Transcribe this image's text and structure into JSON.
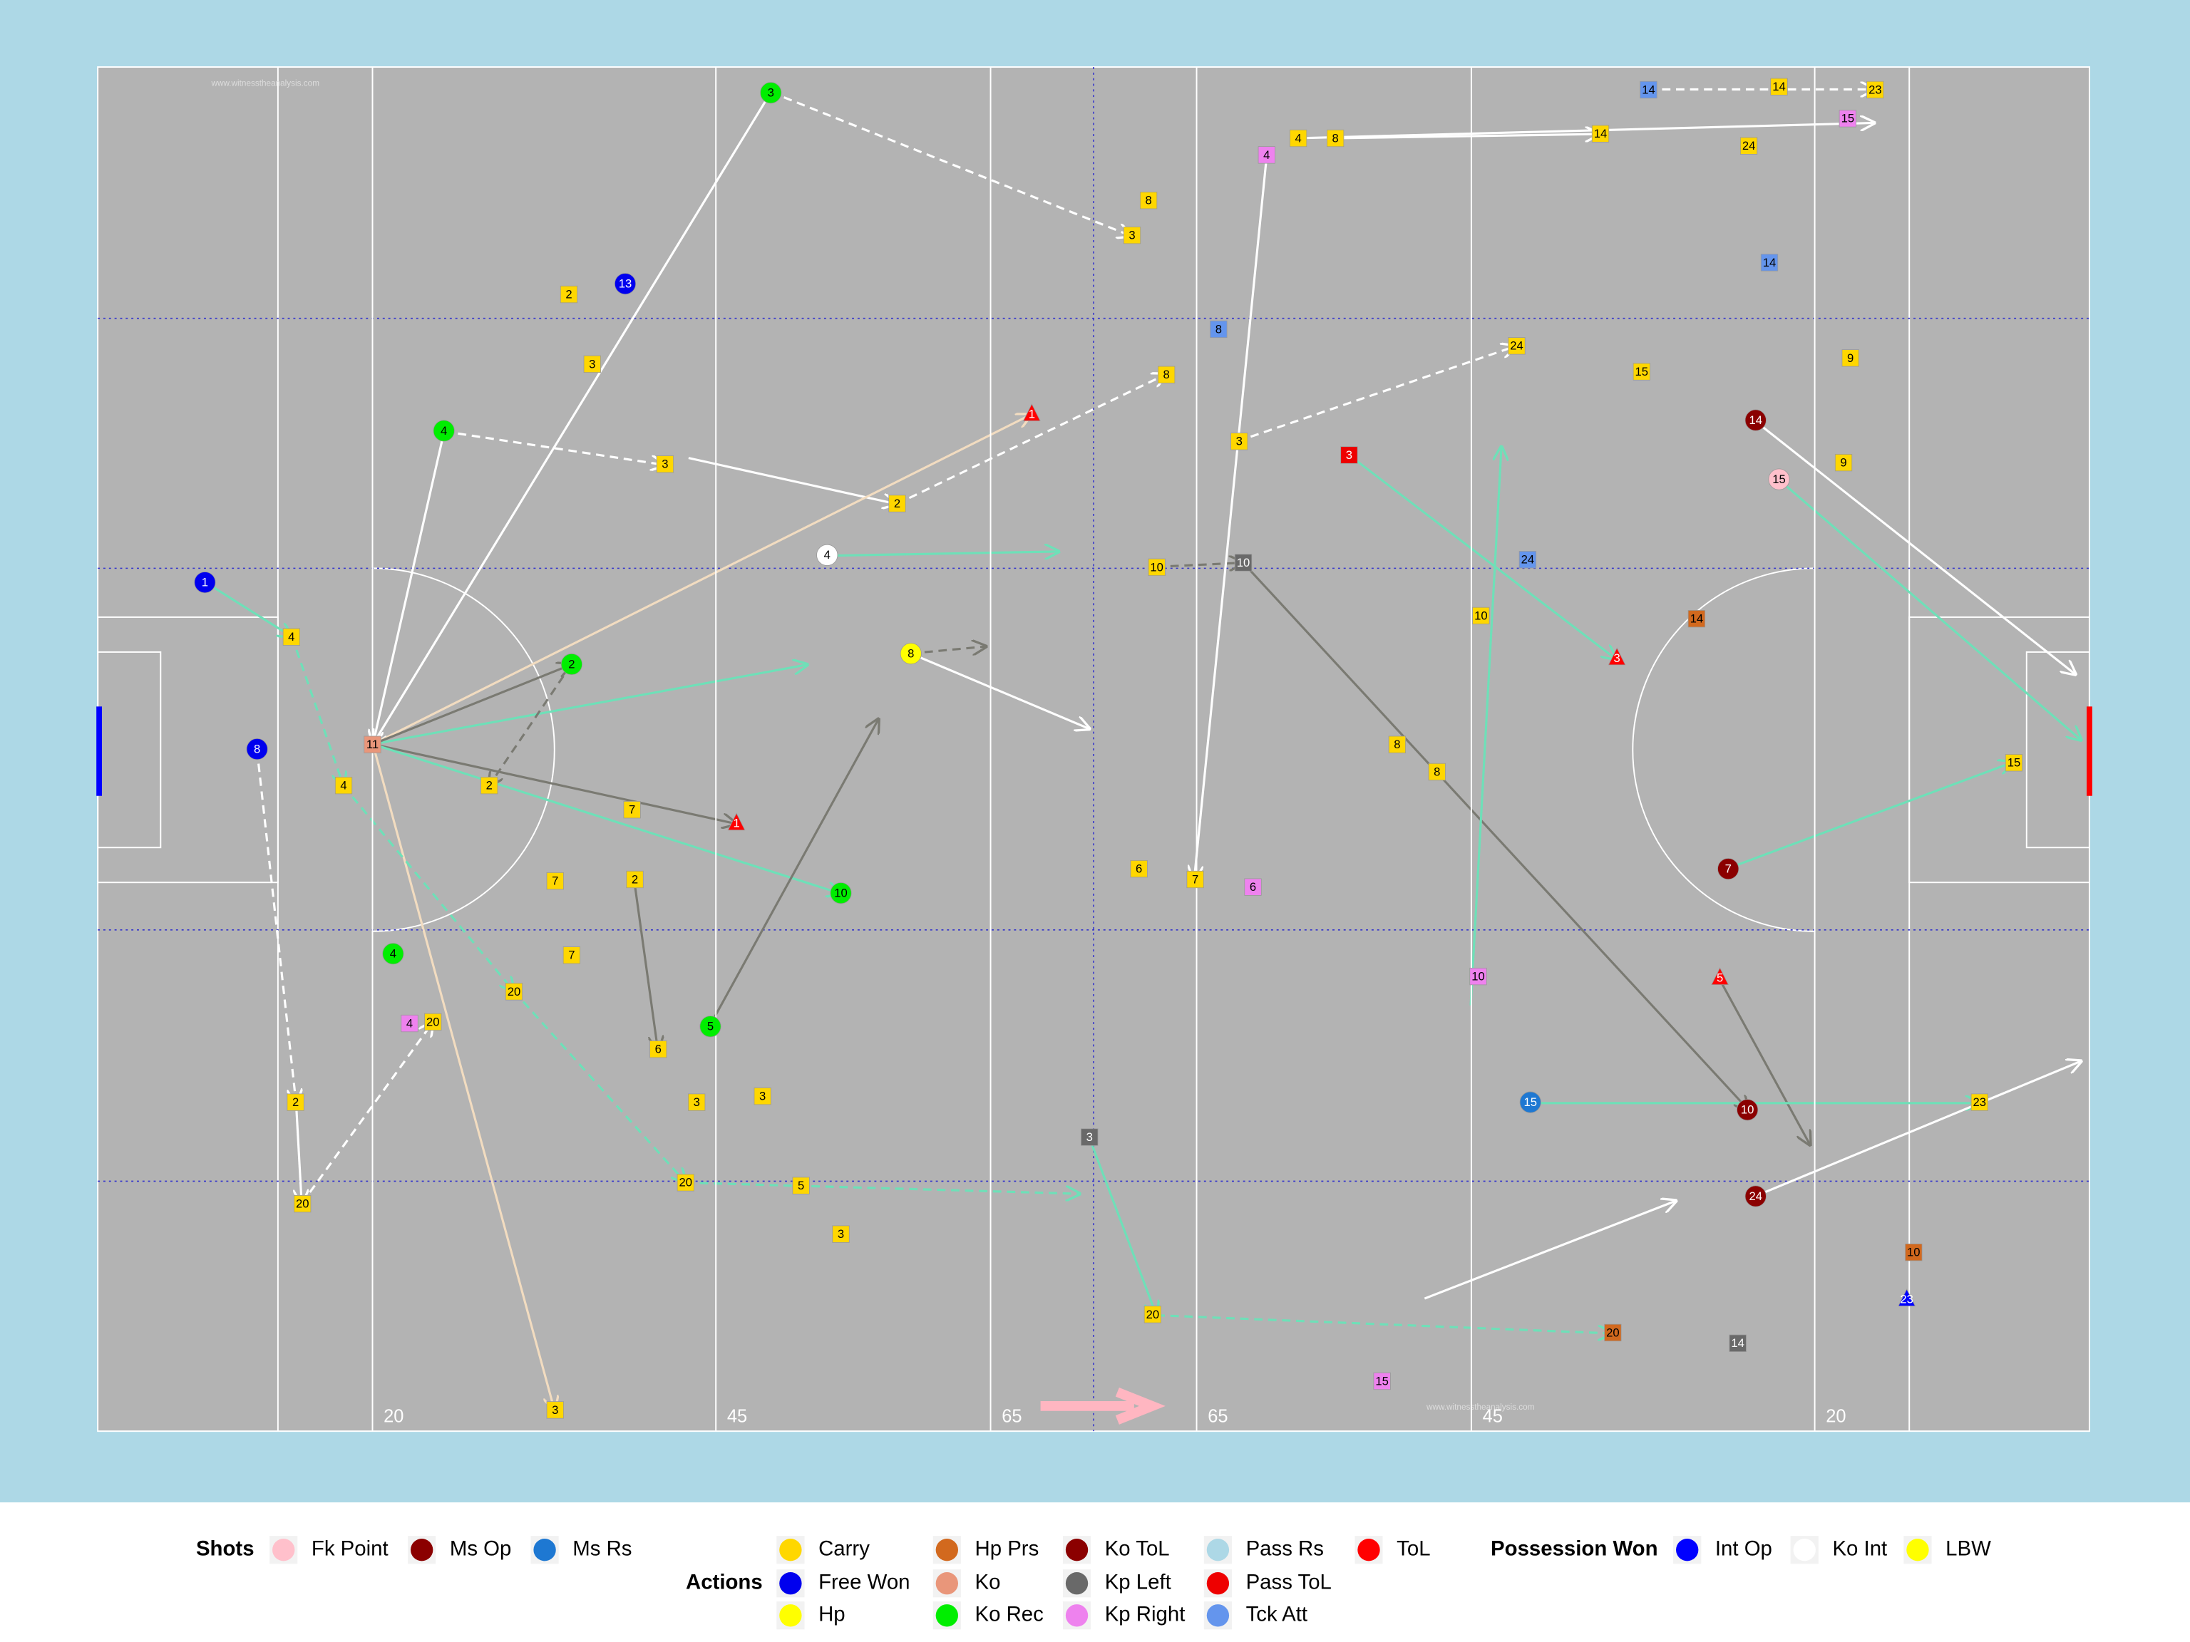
{
  "watermark": "www.witnesstheanalysis.com",
  "chart_data": {
    "type": "pitch",
    "xlim": [
      0,
      145
    ],
    "ylim": [
      0,
      90
    ],
    "xticks": [
      20,
      45,
      65,
      {
        "value": 80,
        "label": "65"
      },
      {
        "value": 100,
        "label": "45"
      },
      {
        "value": 125,
        "label": "20"
      }
    ],
    "legend": [
      {
        "title": "Shots",
        "items": [
          {
            "name": "Fk Point",
            "color": "#ffc0cb",
            "shape": "circle"
          },
          {
            "name": "Ms Op",
            "color": "#8b0000",
            "shape": "circle"
          },
          {
            "name": "Ms Rs",
            "color": "#1e78d2",
            "shape": "circle"
          }
        ]
      },
      {
        "title": "Actions",
        "items": [
          {
            "name": "Carry",
            "color": "#ffd700",
            "shape": "square"
          },
          {
            "name": "Free Won",
            "color": "#0000ee",
            "shape": "circle"
          },
          {
            "name": "Hp",
            "color": "#ffff00",
            "shape": "circle"
          },
          {
            "name": "Hp Prs",
            "color": "#d2691e",
            "shape": "square"
          },
          {
            "name": "Ko",
            "color": "#e9967a",
            "shape": "square"
          },
          {
            "name": "Ko Rec",
            "color": "#00ee00",
            "shape": "circle"
          },
          {
            "name": "Ko ToL",
            "color": "#8b0000",
            "shape": "circle"
          },
          {
            "name": "Kp Left",
            "color": "#696969",
            "shape": "square"
          },
          {
            "name": "Kp Right",
            "color": "#ee82ee",
            "shape": "square"
          },
          {
            "name": "Pass Rs",
            "color": "#add8e6",
            "shape": "square"
          },
          {
            "name": "Pass ToL",
            "color": "#ee0000",
            "shape": "square"
          },
          {
            "name": "Tck Att",
            "color": "#6495ed",
            "shape": "square"
          },
          {
            "name": "ToL",
            "color": "#ff0000",
            "shape": "triangle"
          }
        ]
      },
      {
        "title": "Possession Won",
        "items": [
          {
            "name": "Int Op",
            "color": "#0000ff",
            "shape": "triangle"
          },
          {
            "name": "Ko Int",
            "color": "#ffffff",
            "shape": "circle"
          },
          {
            "name": "LBW",
            "color": "#ffff00",
            "shape": "circle"
          }
        ]
      }
    ],
    "events": [
      {
        "x": 49.0,
        "y": 1.7,
        "label": "3",
        "kind": "Ko Rec"
      },
      {
        "x": 38.4,
        "y": 14.3,
        "label": "13",
        "kind": "Free Won"
      },
      {
        "x": 25.2,
        "y": 24.0,
        "label": "4",
        "kind": "Ko Rec"
      },
      {
        "x": 34.5,
        "y": 39.4,
        "label": "2",
        "kind": "Ko Rec"
      },
      {
        "x": 21.5,
        "y": 58.5,
        "label": "4",
        "kind": "Ko Rec"
      },
      {
        "x": 54.1,
        "y": 54.5,
        "label": "10",
        "kind": "Ko Rec"
      },
      {
        "x": 44.6,
        "y": 63.3,
        "label": "5",
        "kind": "Ko Rec"
      },
      {
        "x": 7.8,
        "y": 34.0,
        "label": "1",
        "kind": "Free Won"
      },
      {
        "x": 11.6,
        "y": 45.0,
        "label": "8",
        "kind": "Free Won"
      },
      {
        "x": 20.0,
        "y": 44.7,
        "label": "11",
        "kind": "Ko"
      },
      {
        "x": 53.1,
        "y": 32.2,
        "label": "4",
        "kind": "Ko Int"
      },
      {
        "x": 59.2,
        "y": 38.7,
        "label": "8",
        "kind": "Hp"
      },
      {
        "x": 34.3,
        "y": 15.0,
        "label": "2",
        "kind": "Carry"
      },
      {
        "x": 36.0,
        "y": 19.6,
        "label": "3",
        "kind": "Carry"
      },
      {
        "x": 41.3,
        "y": 26.2,
        "label": "3",
        "kind": "Carry"
      },
      {
        "x": 58.2,
        "y": 28.8,
        "label": "2",
        "kind": "Carry"
      },
      {
        "x": 14.1,
        "y": 37.6,
        "label": "4",
        "kind": "Carry"
      },
      {
        "x": 17.9,
        "y": 47.4,
        "label": "4",
        "kind": "Carry"
      },
      {
        "x": 28.5,
        "y": 47.4,
        "label": "2",
        "kind": "Carry"
      },
      {
        "x": 38.9,
        "y": 49.0,
        "label": "7",
        "kind": "Carry"
      },
      {
        "x": 39.1,
        "y": 53.6,
        "label": "2",
        "kind": "Carry"
      },
      {
        "x": 33.3,
        "y": 53.7,
        "label": "7",
        "kind": "Carry"
      },
      {
        "x": 34.5,
        "y": 58.6,
        "label": "7",
        "kind": "Carry"
      },
      {
        "x": 30.3,
        "y": 61.0,
        "label": "20",
        "kind": "Carry"
      },
      {
        "x": 24.4,
        "y": 63.0,
        "label": "20",
        "kind": "Carry"
      },
      {
        "x": 22.7,
        "y": 63.1,
        "label": "4",
        "kind": "Kp Right"
      },
      {
        "x": 40.8,
        "y": 64.8,
        "label": "6",
        "kind": "Carry"
      },
      {
        "x": 43.6,
        "y": 68.3,
        "label": "3",
        "kind": "Carry"
      },
      {
        "x": 48.4,
        "y": 67.9,
        "label": "3",
        "kind": "Carry"
      },
      {
        "x": 14.4,
        "y": 68.3,
        "label": "2",
        "kind": "Carry"
      },
      {
        "x": 14.9,
        "y": 75.0,
        "label": "20",
        "kind": "Carry"
      },
      {
        "x": 42.8,
        "y": 73.6,
        "label": "20",
        "kind": "Carry"
      },
      {
        "x": 51.2,
        "y": 73.8,
        "label": "5",
        "kind": "Carry"
      },
      {
        "x": 54.1,
        "y": 77.0,
        "label": "3",
        "kind": "Carry"
      },
      {
        "x": 33.3,
        "y": 88.6,
        "label": "3",
        "kind": "Carry"
      },
      {
        "x": 46.5,
        "y": 49.9,
        "label": "1",
        "kind": "ToL"
      },
      {
        "x": 68.0,
        "y": 22.9,
        "label": "1",
        "kind": "ToL"
      },
      {
        "x": 76.5,
        "y": 8.8,
        "label": "8",
        "kind": "Carry"
      },
      {
        "x": 75.3,
        "y": 11.1,
        "label": "3",
        "kind": "Carry"
      },
      {
        "x": 81.6,
        "y": 17.3,
        "label": "8",
        "kind": "Tck Att"
      },
      {
        "x": 77.8,
        "y": 20.3,
        "label": "8",
        "kind": "Carry"
      },
      {
        "x": 83.1,
        "y": 24.7,
        "label": "3",
        "kind": "Carry"
      },
      {
        "x": 77.1,
        "y": 33.0,
        "label": "10",
        "kind": "Carry"
      },
      {
        "x": 83.4,
        "y": 32.7,
        "label": "10",
        "kind": "Kp Left"
      },
      {
        "x": 85.1,
        "y": 5.8,
        "label": "4",
        "kind": "Kp Right"
      },
      {
        "x": 87.4,
        "y": 4.7,
        "label": "4",
        "kind": "Carry"
      },
      {
        "x": 90.1,
        "y": 4.7,
        "label": "8",
        "kind": "Carry"
      },
      {
        "x": 109.4,
        "y": 4.4,
        "label": "14",
        "kind": "Carry"
      },
      {
        "x": 112.9,
        "y": 1.5,
        "label": "14",
        "kind": "Tck Att"
      },
      {
        "x": 122.4,
        "y": 1.3,
        "label": "14",
        "kind": "Carry"
      },
      {
        "x": 129.4,
        "y": 1.5,
        "label": "23",
        "kind": "Carry"
      },
      {
        "x": 127.4,
        "y": 3.4,
        "label": "15",
        "kind": "Kp Right"
      },
      {
        "x": 120.7,
        "y": 23.3,
        "label": "14",
        "kind": "Ms Op"
      },
      {
        "x": 122.4,
        "y": 27.2,
        "label": "15",
        "kind": "Fk Point"
      },
      {
        "x": 118.7,
        "y": 52.9,
        "label": "7",
        "kind": "Ms Op"
      },
      {
        "x": 120.1,
        "y": 68.8,
        "label": "10",
        "kind": "Ms Op"
      },
      {
        "x": 120.7,
        "y": 74.5,
        "label": "24",
        "kind": "Ms Op"
      },
      {
        "x": 104.3,
        "y": 68.3,
        "label": "15",
        "kind": "Ms Rs"
      },
      {
        "x": 112.4,
        "y": 20.1,
        "label": "15",
        "kind": "Carry"
      },
      {
        "x": 116.4,
        "y": 36.4,
        "label": "14",
        "kind": "Hp Prs"
      },
      {
        "x": 91.1,
        "y": 25.6,
        "label": "3",
        "kind": "Pass ToL"
      },
      {
        "x": 110.6,
        "y": 39.0,
        "label": "3",
        "kind": "ToL"
      },
      {
        "x": 118.1,
        "y": 60.1,
        "label": "5",
        "kind": "ToL"
      },
      {
        "x": 137.0,
        "y": 68.3,
        "label": "23",
        "kind": "Carry"
      },
      {
        "x": 139.5,
        "y": 45.9,
        "label": "15",
        "kind": "Carry"
      },
      {
        "x": 119.4,
        "y": 84.2,
        "label": "14",
        "kind": "Kp Left"
      },
      {
        "x": 110.3,
        "y": 83.5,
        "label": "20",
        "kind": "Hp Prs"
      },
      {
        "x": 93.5,
        "y": 86.7,
        "label": "15",
        "kind": "Kp Right"
      },
      {
        "x": 76.8,
        "y": 82.3,
        "label": "20",
        "kind": "Carry"
      },
      {
        "x": 72.2,
        "y": 70.6,
        "label": "3",
        "kind": "Kp Left"
      },
      {
        "x": 131.7,
        "y": 81.3,
        "label": "23",
        "kind": "Int Op"
      },
      {
        "x": 132.2,
        "y": 78.2,
        "label": "10",
        "kind": "Hp Prs"
      },
      {
        "x": 100.5,
        "y": 60.0,
        "label": "10",
        "kind": "Kp Right"
      },
      {
        "x": 84.1,
        "y": 54.1,
        "label": "6",
        "kind": "Kp Right"
      },
      {
        "x": 79.9,
        "y": 53.6,
        "label": "7",
        "kind": "Carry"
      },
      {
        "x": 75.8,
        "y": 52.9,
        "label": "6",
        "kind": "Carry"
      },
      {
        "x": 100.7,
        "y": 36.2,
        "label": "10",
        "kind": "Carry"
      },
      {
        "x": 94.6,
        "y": 44.7,
        "label": "8",
        "kind": "Carry"
      },
      {
        "x": 97.5,
        "y": 46.5,
        "label": "8",
        "kind": "Carry"
      },
      {
        "x": 104.1,
        "y": 32.5,
        "label": "24",
        "kind": "Tck Att"
      },
      {
        "x": 103.3,
        "y": 18.4,
        "label": "24",
        "kind": "Carry"
      },
      {
        "x": 127.1,
        "y": 26.1,
        "label": "9",
        "kind": "Carry"
      },
      {
        "x": 127.6,
        "y": 19.2,
        "label": "9",
        "kind": "Carry"
      },
      {
        "x": 121.7,
        "y": 12.9,
        "label": "14",
        "kind": "Tck Att"
      },
      {
        "x": 120.2,
        "y": 5.2,
        "label": "24",
        "kind": "Carry"
      }
    ]
  }
}
